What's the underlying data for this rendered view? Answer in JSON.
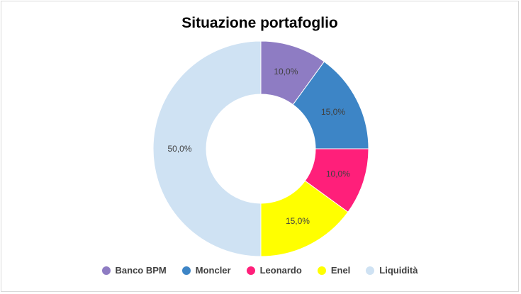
{
  "chart_data": {
    "type": "pie",
    "variant": "donut",
    "title": "Situazione portafoglio",
    "legend_position": "bottom",
    "slices": [
      {
        "name": "Banco BPM",
        "value": 10.0,
        "label": "10,0%",
        "color": "#8e7cc3"
      },
      {
        "name": "Moncler",
        "value": 15.0,
        "label": "15,0%",
        "color": "#3d85c6"
      },
      {
        "name": "Leonardo",
        "value": 10.0,
        "label": "10,0%",
        "color": "#ff1f7a"
      },
      {
        "name": "Enel",
        "value": 15.0,
        "label": "15,0%",
        "color": "#ffff00"
      },
      {
        "name": "Liquidità",
        "value": 50.0,
        "label": "50,0%",
        "color": "#cfe2f3"
      }
    ]
  }
}
